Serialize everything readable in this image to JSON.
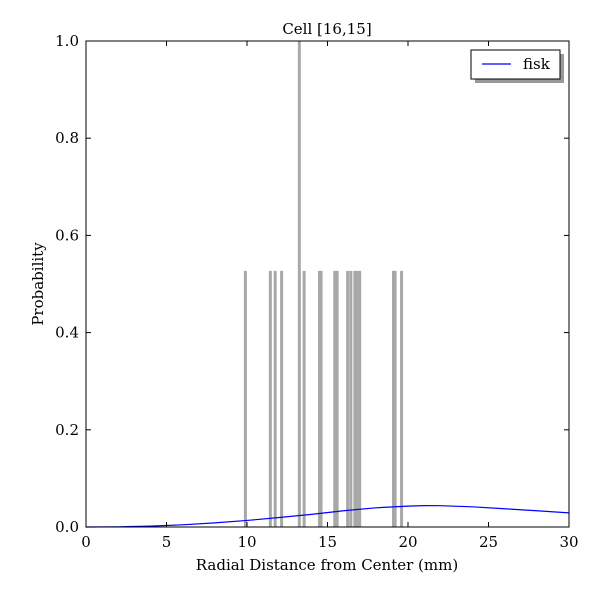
{
  "chart_data": {
    "type": "bar",
    "title": "Cell [16,15]",
    "xlabel": "Radial Distance from Center (mm)",
    "ylabel": "Probability",
    "xlim": [
      0,
      30
    ],
    "ylim": [
      0,
      1.0
    ],
    "xticks": [
      0,
      5,
      10,
      15,
      20,
      25,
      30
    ],
    "xtick_labels": [
      "0",
      "5",
      "10",
      "15",
      "20",
      "25",
      "30"
    ],
    "yticks": [
      0.0,
      0.2,
      0.4,
      0.6,
      0.8,
      1.0
    ],
    "ytick_labels": [
      "0.0",
      "0.2",
      "0.4",
      "0.6",
      "0.8",
      "1.0"
    ],
    "grid": false,
    "legend": {
      "position": "top-right",
      "entries": [
        "fisk"
      ]
    },
    "histogram": {
      "color": "#a8a8a8",
      "bars": [
        {
          "x": 9.9,
          "value": 0.527
        },
        {
          "x": 11.45,
          "value": 0.527
        },
        {
          "x": 11.75,
          "value": 0.527
        },
        {
          "x": 12.15,
          "value": 0.527
        },
        {
          "x": 13.25,
          "value": 1.0
        },
        {
          "x": 13.55,
          "value": 0.527
        },
        {
          "x": 14.5,
          "value": 0.527
        },
        {
          "x": 14.6,
          "value": 0.527
        },
        {
          "x": 15.45,
          "value": 0.527
        },
        {
          "x": 15.6,
          "value": 0.527
        },
        {
          "x": 16.25,
          "value": 0.527
        },
        {
          "x": 16.45,
          "value": 0.527
        },
        {
          "x": 16.7,
          "value": 0.527
        },
        {
          "x": 16.85,
          "value": 0.527
        },
        {
          "x": 17.0,
          "value": 0.527
        },
        {
          "x": 19.1,
          "value": 0.527
        },
        {
          "x": 19.2,
          "value": 0.527
        },
        {
          "x": 19.6,
          "value": 0.527
        }
      ]
    },
    "series": [
      {
        "name": "fisk",
        "type": "line",
        "color": "#0000ff",
        "x": [
          0,
          2,
          4,
          6,
          8,
          10,
          12,
          14,
          16,
          18,
          20,
          21,
          22,
          24,
          26,
          28,
          30
        ],
        "y": [
          0.0,
          0.0004,
          0.0018,
          0.0045,
          0.0085,
          0.0135,
          0.0195,
          0.026,
          0.0335,
          0.0395,
          0.043,
          0.044,
          0.0438,
          0.0415,
          0.0375,
          0.0335,
          0.029
        ]
      }
    ]
  }
}
